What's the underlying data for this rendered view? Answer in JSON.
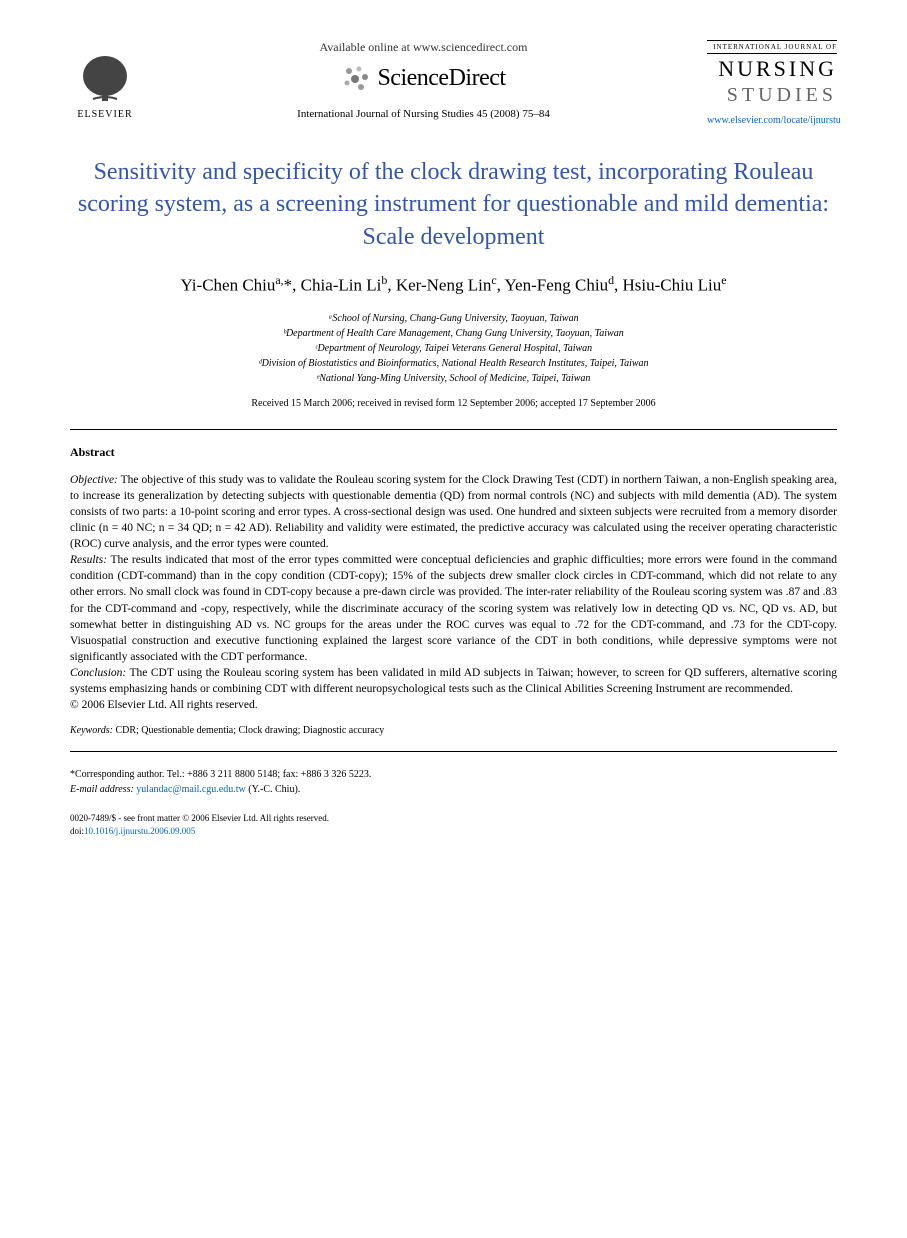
{
  "header": {
    "publisher_name": "ELSEVIER",
    "available_text": "Available online at www.sciencedirect.com",
    "sciencedirect": "ScienceDirect",
    "journal_citation": "International Journal of Nursing Studies 45 (2008) 75–84",
    "journal_badge_top": "INTERNATIONAL JOURNAL OF",
    "journal_badge_nursing": "NURSING",
    "journal_badge_studies": "STUDIES",
    "journal_url": "www.elsevier.com/locate/ijnurstu"
  },
  "title": "Sensitivity and specificity of the clock drawing test, incorporating Rouleau scoring system, as a screening instrument for questionable and mild dementia: Scale development",
  "authors_html": "Yi-Chen Chiu<sup>a,</sup>*, Chia-Lin Li<sup>b</sup>, Ker-Neng Lin<sup>c</sup>, Yen-Feng Chiu<sup>d</sup>, Hsiu-Chiu Liu<sup>e</sup>",
  "affiliations": [
    "ᵃSchool of Nursing, Chang-Gung University, Taoyuan, Taiwan",
    "ᵇDepartment of Health Care Management, Chang Gung University, Taoyuan, Taiwan",
    "ᶜDepartment of Neurology, Taipei Veterans General Hospital, Taiwan",
    "ᵈDivision of Biostatistics and Bioinformatics, National Health Research Institutes, Taipei, Taiwan",
    "ᵉNational Yang-Ming University, School of Medicine, Taipei, Taiwan"
  ],
  "dates": "Received 15 March 2006; received in revised form 12 September 2006; accepted 17 September 2006",
  "abstract": {
    "heading": "Abstract",
    "objective_label": "Objective:",
    "objective": "The objective of this study was to validate the Rouleau scoring system for the Clock Drawing Test (CDT) in northern Taiwan, a non-English speaking area, to increase its generalization by detecting subjects with questionable dementia (QD) from normal controls (NC) and subjects with mild dementia (AD). The system consists of two parts: a 10-point scoring and error types. A cross-sectional design was used. One hundred and sixteen subjects were recruited from a memory disorder clinic (n = 40 NC; n = 34 QD; n = 42 AD). Reliability and validity were estimated, the predictive accuracy was calculated using the receiver operating characteristic (ROC) curve analysis, and the error types were counted.",
    "results_label": "Results:",
    "results": "The results indicated that most of the error types committed were conceptual deficiencies and graphic difficulties; more errors were found in the command condition (CDT-command) than in the copy condition (CDT-copy); 15% of the subjects drew smaller clock circles in CDT-command, which did not relate to any other errors. No small clock was found in CDT-copy because a pre-dawn circle was provided. The inter-rater reliability of the Rouleau scoring system was .87 and .83 for the CDT-command and -copy, respectively, while the discriminate accuracy of the scoring system was relatively low in detecting QD vs. NC, QD vs. AD, but somewhat better in distinguishing AD vs. NC groups for the areas under the ROC curves was equal to .72 for the CDT-command, and .73 for the CDT-copy. Visuospatial construction and executive functioning explained the largest score variance of the CDT in both conditions, while depressive symptoms were not significantly associated with the CDT performance.",
    "conclusion_label": "Conclusion:",
    "conclusion": "The CDT using the Rouleau scoring system has been validated in mild AD subjects in Taiwan; however, to screen for QD sufferers, alternative scoring systems emphasizing hands or combining CDT with different neuropsychological tests such as the Clinical Abilities Screening Instrument are recommended.",
    "copyright": "© 2006 Elsevier Ltd. All rights reserved."
  },
  "keywords": {
    "label": "Keywords:",
    "text": "CDR; Questionable dementia; Clock drawing; Diagnostic accuracy"
  },
  "footnotes": {
    "corresponding": "*Corresponding author. Tel.: +886 3 211 8800 5148; fax: +886 3 326 5223.",
    "email_label": "E-mail address:",
    "email": "yulandac@mail.cgu.edu.tw",
    "email_suffix": "(Y.-C. Chiu)."
  },
  "footer": {
    "issn_line": "0020-7489/$ - see front matter © 2006 Elsevier Ltd. All rights reserved.",
    "doi_label": "doi:",
    "doi": "10.1016/j.ijnurstu.2006.09.005"
  },
  "colors": {
    "title_color": "#3355aa",
    "link_color": "#0066cc",
    "text_color": "#000000",
    "background": "#ffffff"
  },
  "typography": {
    "title_fontsize": 24,
    "authors_fontsize": 17,
    "body_fontsize": 11.5,
    "affiliation_fontsize": 10,
    "font_family": "Georgia, Times New Roman, serif"
  }
}
